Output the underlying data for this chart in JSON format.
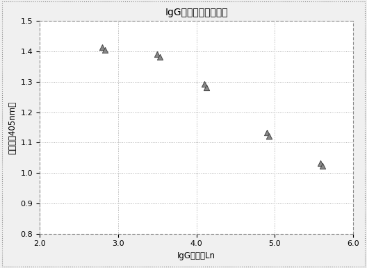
{
  "title": "IgGアッセイ校正曲線",
  "xlabel": "IgG濃度のLn",
  "ylabel": "吸光度（405nm）",
  "x_data": [
    2.8,
    2.83,
    3.5,
    3.53,
    4.1,
    4.13,
    4.9,
    4.93,
    5.58,
    5.61
  ],
  "y_data": [
    1.415,
    1.405,
    1.392,
    1.382,
    1.292,
    1.282,
    1.132,
    1.122,
    1.033,
    1.023
  ],
  "xlim": [
    2.0,
    6.0
  ],
  "ylim": [
    0.8,
    1.5
  ],
  "xticks": [
    2.0,
    3.0,
    4.0,
    5.0,
    6.0
  ],
  "yticks": [
    0.8,
    0.9,
    1.0,
    1.1,
    1.2,
    1.3,
    1.4,
    1.5
  ],
  "marker_color": "#888888",
  "marker_edge_color": "#444444",
  "bg_color": "#f0f0f0",
  "plot_bg_color": "#ffffff",
  "grid_color": "#aaaaaa",
  "border_color": "#888888",
  "title_fontsize": 10,
  "label_fontsize": 8.5,
  "tick_fontsize": 8
}
